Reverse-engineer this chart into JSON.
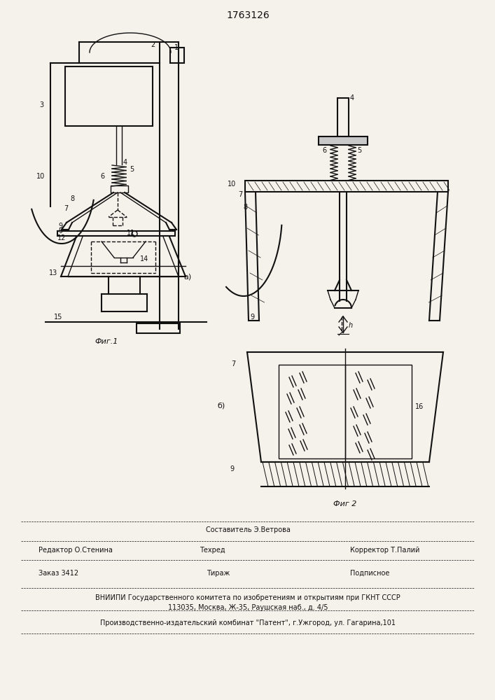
{
  "title": "1763126",
  "bg_color": "#f5f2ec",
  "line_color": "#111111",
  "fig1_caption": "Фиг.1",
  "fig2_caption": "Фиг 2",
  "label_a": "а)",
  "label_b": "б)",
  "text_sostavitel": "Составитель Э.Ветрова",
  "text_redaktor": "Редактор О.Стенина",
  "text_tehred": "Техред",
  "text_korrektor": "Корректор Т.Палий",
  "text_zakaz": "Заказ 3412",
  "text_tirazh": "Тираж",
  "text_podpisnoe": "Подписное",
  "text_vniipи": "ВНИИПИ Государственного комитета по изобретениям и открытиям при ГКНТ СССР",
  "text_address": "113035, Москва, Ж-35, Раушская наб., д. 4/5",
  "text_patent": "Производственно-издательский комбинат \"Патент\", г.Ужгород, ул. Гагарина,101"
}
